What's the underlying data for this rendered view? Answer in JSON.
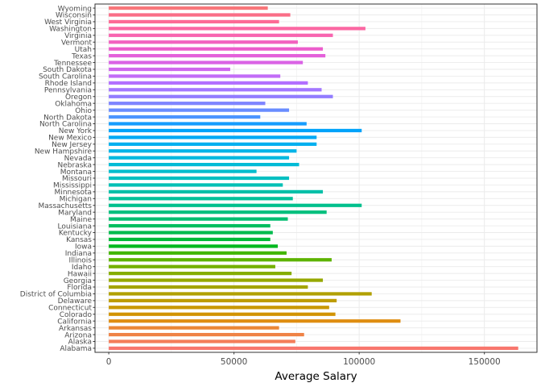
{
  "chart_data": {
    "type": "bar",
    "orientation": "horizontal",
    "title": "",
    "xlabel": "Average Salary",
    "ylabel": "",
    "xlim": [
      -5500,
      171000
    ],
    "xticks": [
      0,
      50000,
      100000,
      150000
    ],
    "xtick_labels": [
      "0",
      "50000",
      "100000",
      "150000"
    ],
    "grid": true,
    "legend": "none",
    "categories": [
      "Alabama",
      "Alaska",
      "Arizona",
      "Arkansas",
      "California",
      "Colorado",
      "Connecticut",
      "Delaware",
      "District of Columbia",
      "Florida",
      "Georgia",
      "Hawaii",
      "Idaho",
      "Illinois",
      "Indiana",
      "Iowa",
      "Kansas",
      "Kentucky",
      "Louisiana",
      "Maine",
      "Maryland",
      "Massachusetts",
      "Michigan",
      "Minnesota",
      "Mississippi",
      "Missouri",
      "Montana",
      "Nebraska",
      "Nevada",
      "New Hampshire",
      "New Jersey",
      "New Mexico",
      "New York",
      "North Carolina",
      "North Dakota",
      "Ohio",
      "Oklahoma",
      "Oregon",
      "Pennsylvania",
      "Rhode Island",
      "South Carolina",
      "South Dakota",
      "Tennessee",
      "Texas",
      "Utah",
      "Vermont",
      "Virginia",
      "Washington",
      "West Virginia",
      "Wisconsin",
      "Wyoming"
    ],
    "values": [
      163500,
      74500,
      78000,
      68000,
      116500,
      90500,
      88000,
      91000,
      105000,
      79500,
      85500,
      73000,
      66500,
      89000,
      71000,
      67500,
      64500,
      65500,
      64500,
      71500,
      87000,
      101000,
      73500,
      85500,
      69500,
      72000,
      59000,
      76000,
      72000,
      75000,
      83000,
      83000,
      101000,
      79000,
      60500,
      72000,
      62500,
      89500,
      85000,
      79500,
      68500,
      48500,
      77500,
      86500,
      85500,
      75500,
      89500,
      102500,
      68000,
      72500,
      63500
    ],
    "colors": [
      "#F8766D",
      "#F47D59",
      "#EF8245",
      "#EB8735",
      "#DF8E12",
      "#D29300",
      "#C99800",
      "#BE9C00",
      "#B1A000",
      "#A4A400",
      "#96A800",
      "#85AD00",
      "#73B000",
      "#5DB300",
      "#41B600",
      "#00B81E",
      "#00BA38",
      "#00BB4D",
      "#00BD5F",
      "#00BE70",
      "#00BF7D",
      "#00C08D",
      "#00C19A",
      "#00C0A8",
      "#00C0B5",
      "#00BFC1",
      "#00BDCD",
      "#00BBD6",
      "#00B8DF",
      "#00B4E8",
      "#00AFEF",
      "#00A9F5",
      "#00A3FA",
      "#169CFD",
      "#4C95FF",
      "#698CFF",
      "#7F84FF",
      "#927CFF",
      "#A377FF",
      "#B26FFF",
      "#C26CF7",
      "#CF67EE",
      "#DA63E5",
      "#E460DA",
      "#EC5DCC",
      "#F262BF",
      "#F865AF",
      "#FB67A2",
      "#FD6A95",
      "#FA6E87",
      "#F8767A"
    ]
  }
}
